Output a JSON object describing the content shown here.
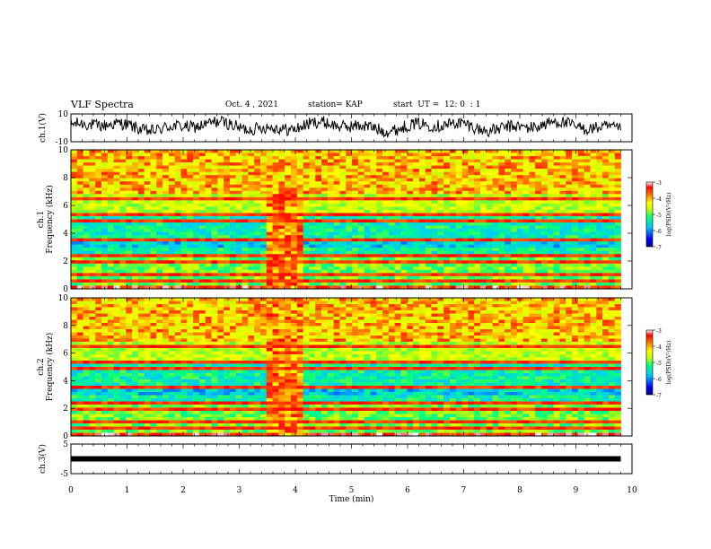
{
  "header": {
    "title": "VLF Spectra",
    "date": "Oct. 4 , 2021",
    "station": "station= KAP",
    "start": "start  UT =  12: 0  : 1"
  },
  "chart_data": [
    {
      "type": "line",
      "panel": "ch1-waveform",
      "ylabel": "ch.1(V)",
      "ylim": [
        -10,
        10
      ],
      "xlim": [
        0,
        10
      ],
      "yticks": [
        "10",
        "-10"
      ],
      "series": [
        {
          "x": [
            0,
            0.5,
            1,
            1.5,
            2,
            2.5,
            3,
            3.5,
            4,
            4.5,
            5,
            5.5,
            6,
            6.5,
            7,
            7.5,
            8,
            8.5,
            9,
            9.5,
            9.8
          ],
          "y": [
            2,
            1,
            4,
            0,
            2,
            1,
            3,
            -1,
            2,
            0,
            3,
            1,
            -2,
            2,
            1,
            3,
            0,
            2,
            1,
            3,
            2
          ]
        }
      ]
    },
    {
      "type": "heatmap",
      "panel": "ch1-spectrogram",
      "ylabel": "ch.1\nFrequency (kHz)",
      "ylim": [
        0,
        10
      ],
      "xlim": [
        0,
        10
      ],
      "yticks": [
        "0",
        "2",
        "4",
        "6",
        "8",
        "10"
      ],
      "colorbar": {
        "label": "log(PSD)(V²/Hz)",
        "ticks": [
          "-3",
          "-4",
          "-5",
          "-6",
          "-7"
        ],
        "range": [
          -7,
          -3
        ]
      }
    },
    {
      "type": "heatmap",
      "panel": "ch2-spectrogram",
      "ylabel": "ch.2\nFrequency (kHz)",
      "ylim": [
        0,
        10
      ],
      "xlim": [
        0,
        10
      ],
      "yticks": [
        "0",
        "2",
        "4",
        "6",
        "8",
        "10"
      ],
      "colorbar": {
        "label": "log(PSD)(V²/Hz)",
        "ticks": [
          "-3",
          "-4",
          "-5",
          "-6",
          "-7"
        ],
        "range": [
          -7,
          -3
        ]
      }
    },
    {
      "type": "line",
      "panel": "ch3-waveform",
      "ylabel": "ch.3(V)",
      "ylim": [
        -5,
        5
      ],
      "xlim": [
        0,
        10
      ],
      "yticks": [
        "5",
        "-5"
      ],
      "series": [
        {
          "x": [
            0,
            9.8
          ],
          "y": [
            0,
            0
          ]
        }
      ]
    }
  ],
  "xaxis": {
    "label": "Time  (min)",
    "ticks": [
      "0",
      "1",
      "2",
      "3",
      "4",
      "5",
      "6",
      "7",
      "8",
      "9",
      "10"
    ]
  },
  "colors": {
    "axis": "#000000",
    "colormap": [
      "#000080",
      "#0000ff",
      "#00c8ff",
      "#00ff80",
      "#c8ff00",
      "#ffff00",
      "#ff8000",
      "#ff0000",
      "#ffffff"
    ]
  }
}
